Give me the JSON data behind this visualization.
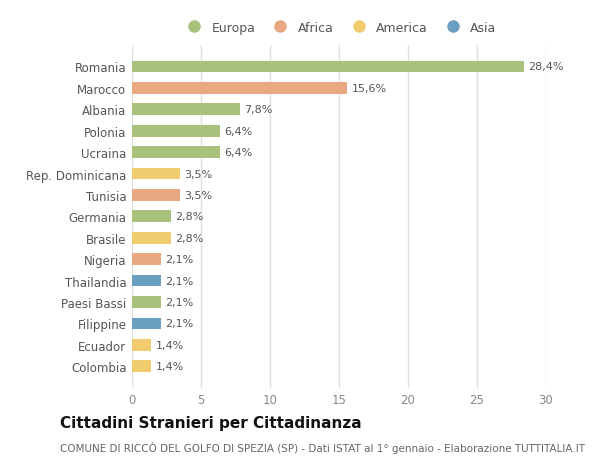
{
  "title": "Cittadini Stranieri per Cittadinanza",
  "subtitle": "COMUNE DI RICCÒ DEL GOLFO DI SPEZIA (SP) - Dati ISTAT al 1° gennaio - Elaborazione TUTTITALIA.IT",
  "categories": [
    "Romania",
    "Marocco",
    "Albania",
    "Polonia",
    "Ucraina",
    "Rep. Dominicana",
    "Tunisia",
    "Germania",
    "Brasile",
    "Nigeria",
    "Thailandia",
    "Paesi Bassi",
    "Filippine",
    "Ecuador",
    "Colombia"
  ],
  "values": [
    28.4,
    15.6,
    7.8,
    6.4,
    6.4,
    3.5,
    3.5,
    2.8,
    2.8,
    2.1,
    2.1,
    2.1,
    2.1,
    1.4,
    1.4
  ],
  "labels": [
    "28,4%",
    "15,6%",
    "7,8%",
    "6,4%",
    "6,4%",
    "3,5%",
    "3,5%",
    "2,8%",
    "2,8%",
    "2,1%",
    "2,1%",
    "2,1%",
    "2,1%",
    "1,4%",
    "1,4%"
  ],
  "continents": [
    "Europa",
    "Africa",
    "Europa",
    "Europa",
    "Europa",
    "America",
    "Africa",
    "Europa",
    "America",
    "Africa",
    "Asia",
    "Europa",
    "Asia",
    "America",
    "America"
  ],
  "colors": {
    "Europa": "#a8c17c",
    "Africa": "#e8a882",
    "America": "#f0cc6e",
    "Asia": "#6a9fc0"
  },
  "legend_order": [
    "Europa",
    "Africa",
    "America",
    "Asia"
  ],
  "xlim": [
    0,
    30
  ],
  "xticks": [
    0,
    5,
    10,
    15,
    20,
    25,
    30
  ],
  "background_color": "#ffffff",
  "plot_bg_color": "#ffffff",
  "grid_color": "#e0e0e0",
  "bar_height": 0.55,
  "title_fontsize": 11,
  "subtitle_fontsize": 7.5,
  "tick_fontsize": 8.5,
  "label_fontsize": 8,
  "legend_fontsize": 9
}
